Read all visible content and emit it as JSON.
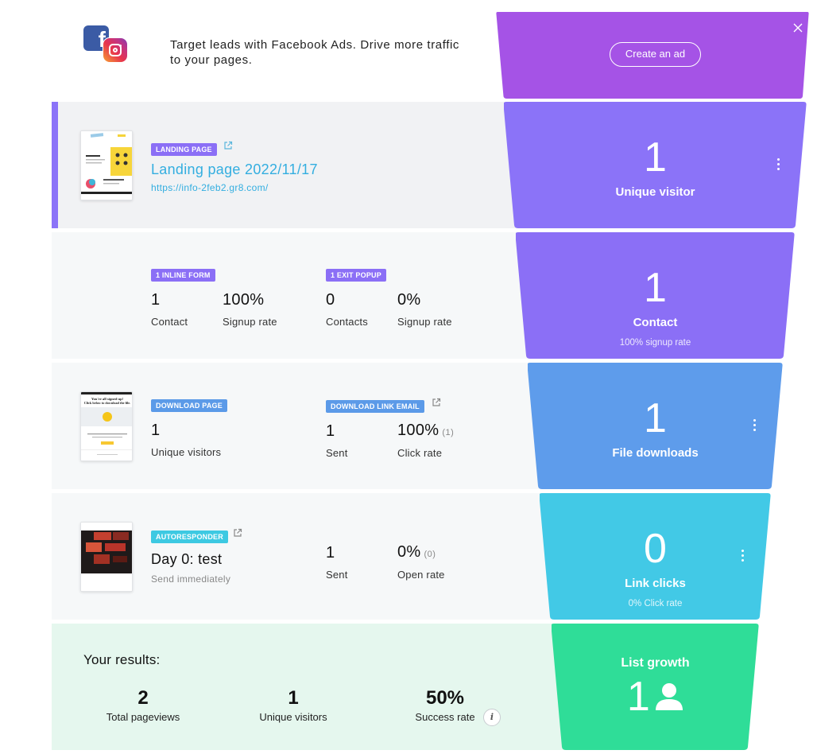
{
  "ad": {
    "text": "Target leads with Facebook Ads. Drive more traffic to your pages.",
    "button": "Create an ad",
    "logos": [
      "facebook-logo",
      "instagram-logo"
    ],
    "close_icon": "close-icon"
  },
  "landing": {
    "tag": "LANDING PAGE",
    "title": "Landing page 2022/11/17",
    "url": "https://info-2feb2.gr8.com/",
    "funnel_value": "1",
    "funnel_label": "Unique visitor"
  },
  "forms": {
    "inline_tag": "1 INLINE FORM",
    "inline_contacts": "1",
    "inline_contacts_label": "Contact",
    "inline_rate": "100%",
    "inline_rate_label": "Signup rate",
    "popup_tag": "1 EXIT POPUP",
    "popup_contacts": "0",
    "popup_contacts_label": "Contacts",
    "popup_rate": "0%",
    "popup_rate_label": "Signup rate",
    "funnel_value": "1",
    "funnel_label": "Contact",
    "funnel_sub": "100% signup rate"
  },
  "download": {
    "page_tag": "DOWNLOAD PAGE",
    "visitors": "1",
    "visitors_label": "Unique visitors",
    "email_tag": "DOWNLOAD LINK EMAIL",
    "sent": "1",
    "sent_label": "Sent",
    "click_rate": "100%",
    "click_count": "(1)",
    "click_rate_label": "Click rate",
    "funnel_value": "1",
    "funnel_label": "File downloads",
    "thumb_heading": "You're all signed up! Click below to download the file."
  },
  "autoresponder": {
    "tag": "AUTORESPONDER",
    "title": "Day 0: test",
    "schedule": "Send immediately",
    "sent": "1",
    "sent_label": "Sent",
    "open_rate": "0%",
    "open_count": "(0)",
    "open_rate_label": "Open rate",
    "funnel_value": "0",
    "funnel_label": "Link clicks",
    "funnel_sub": "0% Click rate"
  },
  "results": {
    "heading": "Your results:",
    "pageviews": "2",
    "pageviews_label": "Total pageviews",
    "visitors": "1",
    "visitors_label": "Unique visitors",
    "success": "50%",
    "success_label": "Success rate",
    "growth_label": "List growth",
    "growth_value": "1"
  },
  "colors": {
    "ad_purple": "#a553e6",
    "visitor_purple": "#8b73f8",
    "contact_purple": "#8b6ff6",
    "download_blue": "#5e9ceb",
    "clicks_cyan": "#42c9e6",
    "growth_green": "#2fdd98"
  }
}
